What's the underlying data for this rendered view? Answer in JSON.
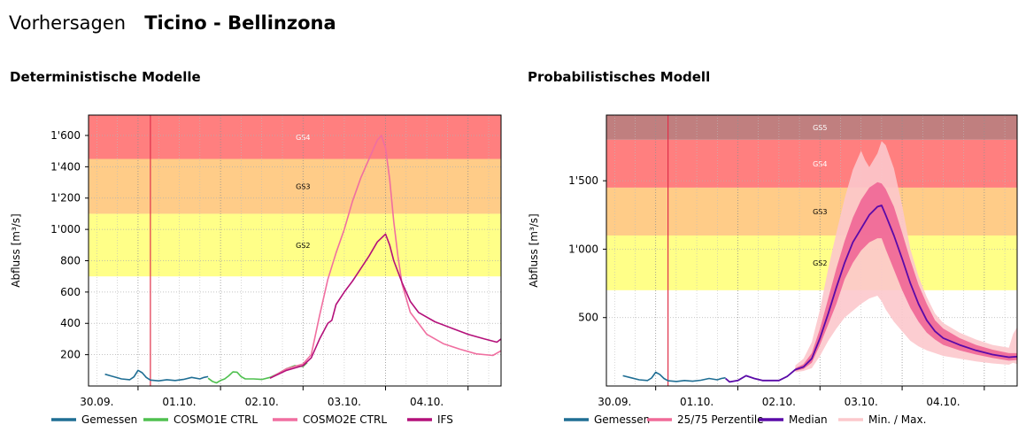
{
  "header": {
    "label": "Vorhersagen",
    "station": "Ticino - Bellinzona"
  },
  "panels": {
    "deterministic_title": "Deterministische Modelle",
    "probabilistic_title": "Probabilistisches Modell"
  },
  "colors": {
    "GS2": "#ffff88",
    "GS3": "#ffcc88",
    "GS4": "#ff7f7f",
    "GS5": "#c07f7f",
    "now_line": "#e0304a",
    "gemessen": "#1f6e94",
    "cosmo1e": "#4fc04f",
    "cosmo2e": "#f06fa0",
    "ifs": "#b4107a",
    "median": "#5a0aa8",
    "perzentile": "#f06a98",
    "minmax": "#fcc8cc"
  },
  "chart_data": [
    {
      "type": "line",
      "title": "Deterministische Modelle",
      "xlabel": "",
      "ylabel": "Abfluss [m³/s]",
      "x_tick_labels": [
        "30.09.",
        "01.10.",
        "02.10.",
        "03.10.",
        "04.10."
      ],
      "x_range_days": [
        -0.6,
        4.4
      ],
      "x_days_note_hidden": true,
      "ylim": [
        0,
        1730
      ],
      "y_ticks": [
        200,
        400,
        600,
        800,
        1000,
        1200,
        1400,
        1600
      ],
      "y_tick_labels": [
        "200",
        "400",
        "600",
        "800",
        "1'000",
        "1'200",
        "1'400",
        "1'600"
      ],
      "grid": true,
      "legend_position": "bottom",
      "now": 0.15,
      "danger_levels": [
        {
          "name": "GS2",
          "from": 700,
          "to": 1100
        },
        {
          "name": "GS3",
          "from": 1100,
          "to": 1450
        },
        {
          "name": "GS4",
          "from": 1450,
          "to": 1730
        }
      ],
      "series": [
        {
          "name": "Gemessen",
          "points": [
            [
              -0.4,
              75
            ],
            [
              -0.3,
              60
            ],
            [
              -0.2,
              45
            ],
            [
              -0.1,
              40
            ],
            [
              -0.05,
              58
            ],
            [
              0.0,
              100
            ],
            [
              0.05,
              85
            ],
            [
              0.1,
              55
            ],
            [
              0.15,
              38
            ],
            [
              0.25,
              33
            ],
            [
              0.35,
              40
            ],
            [
              0.45,
              35
            ],
            [
              0.55,
              42
            ],
            [
              0.65,
              55
            ],
            [
              0.75,
              45
            ],
            [
              0.8,
              55
            ],
            [
              0.85,
              60
            ]
          ]
        },
        {
          "name": "COSMO1E CTRL",
          "points": [
            [
              0.85,
              50
            ],
            [
              0.9,
              30
            ],
            [
              0.95,
              20
            ],
            [
              1.0,
              35
            ],
            [
              1.05,
              45
            ],
            [
              1.1,
              65
            ],
            [
              1.15,
              90
            ],
            [
              1.2,
              88
            ],
            [
              1.25,
              60
            ],
            [
              1.3,
              45
            ],
            [
              1.4,
              45
            ],
            [
              1.5,
              42
            ],
            [
              1.6,
              55
            ],
            [
              1.7,
              80
            ],
            [
              1.8,
              110
            ],
            [
              1.9,
              130
            ],
            [
              2.0,
              125
            ],
            [
              2.05,
              150
            ]
          ]
        },
        {
          "name": "COSMO2E CTRL",
          "points": [
            [
              1.6,
              50
            ],
            [
              1.8,
              110
            ],
            [
              2.0,
              140
            ],
            [
              2.1,
              200
            ],
            [
              2.2,
              450
            ],
            [
              2.3,
              680
            ],
            [
              2.4,
              850
            ],
            [
              2.5,
              1000
            ],
            [
              2.6,
              1180
            ],
            [
              2.7,
              1330
            ],
            [
              2.8,
              1450
            ],
            [
              2.9,
              1570
            ],
            [
              2.95,
              1600
            ],
            [
              3.0,
              1520
            ],
            [
              3.05,
              1320
            ],
            [
              3.1,
              1050
            ],
            [
              3.15,
              830
            ],
            [
              3.2,
              650
            ],
            [
              3.3,
              470
            ],
            [
              3.5,
              330
            ],
            [
              3.7,
              270
            ],
            [
              3.9,
              235
            ],
            [
              4.1,
              205
            ],
            [
              4.3,
              195
            ],
            [
              4.4,
              225
            ]
          ]
        },
        {
          "name": "IFS",
          "points": [
            [
              1.6,
              50
            ],
            [
              1.8,
              100
            ],
            [
              2.0,
              130
            ],
            [
              2.1,
              180
            ],
            [
              2.2,
              300
            ],
            [
              2.3,
              400
            ],
            [
              2.35,
              420
            ],
            [
              2.4,
              520
            ],
            [
              2.5,
              600
            ],
            [
              2.6,
              670
            ],
            [
              2.7,
              750
            ],
            [
              2.8,
              830
            ],
            [
              2.9,
              920
            ],
            [
              3.0,
              970
            ],
            [
              3.05,
              900
            ],
            [
              3.1,
              800
            ],
            [
              3.2,
              660
            ],
            [
              3.3,
              540
            ],
            [
              3.4,
              470
            ],
            [
              3.6,
              410
            ],
            [
              3.8,
              370
            ],
            [
              4.0,
              330
            ],
            [
              4.2,
              300
            ],
            [
              4.35,
              280
            ],
            [
              4.4,
              300
            ]
          ]
        }
      ]
    },
    {
      "type": "area",
      "title": "Probabilistisches Modell",
      "xlabel": "",
      "ylabel": "Abfluss [m³/s]",
      "x_tick_labels": [
        "30.09.",
        "01.10.",
        "02.10.",
        "03.10.",
        "04.10."
      ],
      "x_range_days": [
        -0.6,
        4.4
      ],
      "ylim": [
        0,
        1980
      ],
      "y_ticks": [
        500,
        1000,
        1500
      ],
      "y_tick_labels": [
        "500",
        "1'000",
        "1'500"
      ],
      "grid": true,
      "legend_position": "bottom",
      "now": 0.15,
      "danger_levels": [
        {
          "name": "GS2",
          "from": 700,
          "to": 1100
        },
        {
          "name": "GS3",
          "from": 1100,
          "to": 1450
        },
        {
          "name": "GS4",
          "from": 1450,
          "to": 1800
        },
        {
          "name": "GS5",
          "from": 1800,
          "to": 1980
        }
      ],
      "series": [
        {
          "name": "Gemessen",
          "points": [
            [
              -0.4,
              75
            ],
            [
              -0.3,
              60
            ],
            [
              -0.2,
              45
            ],
            [
              -0.1,
              40
            ],
            [
              -0.05,
              58
            ],
            [
              0.0,
              100
            ],
            [
              0.05,
              85
            ],
            [
              0.1,
              55
            ],
            [
              0.15,
              38
            ],
            [
              0.25,
              33
            ],
            [
              0.35,
              40
            ],
            [
              0.45,
              35
            ],
            [
              0.55,
              42
            ],
            [
              0.65,
              55
            ],
            [
              0.75,
              45
            ],
            [
              0.8,
              55
            ],
            [
              0.85,
              60
            ]
          ]
        },
        {
          "name": "Median",
          "points": [
            [
              0.85,
              55
            ],
            [
              0.9,
              30
            ],
            [
              1.0,
              40
            ],
            [
              1.1,
              75
            ],
            [
              1.2,
              55
            ],
            [
              1.3,
              40
            ],
            [
              1.5,
              40
            ],
            [
              1.6,
              70
            ],
            [
              1.7,
              120
            ],
            [
              1.8,
              140
            ],
            [
              1.9,
              200
            ],
            [
              2.0,
              350
            ],
            [
              2.1,
              530
            ],
            [
              2.2,
              720
            ],
            [
              2.3,
              900
            ],
            [
              2.4,
              1050
            ],
            [
              2.5,
              1150
            ],
            [
              2.6,
              1250
            ],
            [
              2.7,
              1310
            ],
            [
              2.75,
              1320
            ],
            [
              2.8,
              1250
            ],
            [
              2.9,
              1100
            ],
            [
              3.0,
              930
            ],
            [
              3.1,
              750
            ],
            [
              3.2,
              600
            ],
            [
              3.3,
              480
            ],
            [
              3.4,
              400
            ],
            [
              3.5,
              350
            ],
            [
              3.7,
              300
            ],
            [
              3.9,
              260
            ],
            [
              4.1,
              230
            ],
            [
              4.3,
              210
            ],
            [
              4.4,
              215
            ]
          ]
        }
      ],
      "bands": [
        {
          "name": "25/75 Perzentile",
          "points": [
            [
              1.7,
              110,
              130
            ],
            [
              1.8,
              125,
              160
            ],
            [
              1.9,
              170,
              240
            ],
            [
              2.0,
              300,
              420
            ],
            [
              2.1,
              450,
              640
            ],
            [
              2.2,
              600,
              860
            ],
            [
              2.3,
              780,
              1060
            ],
            [
              2.4,
              900,
              1230
            ],
            [
              2.5,
              990,
              1360
            ],
            [
              2.6,
              1050,
              1450
            ],
            [
              2.7,
              1080,
              1490
            ],
            [
              2.75,
              1080,
              1480
            ],
            [
              2.8,
              1000,
              1440
            ],
            [
              2.9,
              850,
              1310
            ],
            [
              3.0,
              700,
              1120
            ],
            [
              3.1,
              570,
              920
            ],
            [
              3.2,
              470,
              740
            ],
            [
              3.3,
              390,
              600
            ],
            [
              3.4,
              340,
              480
            ],
            [
              3.5,
              300,
              420
            ],
            [
              3.7,
              260,
              350
            ],
            [
              3.9,
              230,
              300
            ],
            [
              4.1,
              205,
              265
            ],
            [
              4.3,
              185,
              240
            ],
            [
              4.4,
              190,
              240
            ]
          ]
        },
        {
          "name": "Min. / Max.",
          "points": [
            [
              1.7,
              100,
              150
            ],
            [
              1.8,
              110,
              200
            ],
            [
              1.9,
              130,
              320
            ],
            [
              2.0,
              220,
              560
            ],
            [
              2.1,
              330,
              860
            ],
            [
              2.2,
              420,
              1120
            ],
            [
              2.3,
              500,
              1370
            ],
            [
              2.4,
              550,
              1580
            ],
            [
              2.5,
              600,
              1720
            ],
            [
              2.55,
              620,
              1650
            ],
            [
              2.6,
              640,
              1600
            ],
            [
              2.7,
              660,
              1700
            ],
            [
              2.75,
              620,
              1790
            ],
            [
              2.8,
              560,
              1760
            ],
            [
              2.9,
              470,
              1590
            ],
            [
              3.0,
              400,
              1320
            ],
            [
              3.1,
              330,
              1000
            ],
            [
              3.2,
              290,
              800
            ],
            [
              3.3,
              260,
              650
            ],
            [
              3.4,
              240,
              530
            ],
            [
              3.5,
              220,
              460
            ],
            [
              3.7,
              200,
              390
            ],
            [
              3.9,
              180,
              340
            ],
            [
              4.1,
              165,
              300
            ],
            [
              4.3,
              155,
              280
            ],
            [
              4.35,
              170,
              380
            ],
            [
              4.4,
              160,
              430
            ]
          ]
        }
      ]
    }
  ],
  "legends": {
    "deterministic": [
      {
        "label": "Gemessen",
        "color": "#1f6e94"
      },
      {
        "label": "COSMO1E CTRL",
        "color": "#4fc04f"
      },
      {
        "label": "COSMO2E CTRL",
        "color": "#f06fa0"
      },
      {
        "label": "IFS",
        "color": "#b4107a"
      }
    ],
    "probabilistic": [
      {
        "label": "Gemessen",
        "color": "#1f6e94"
      },
      {
        "label": "25/75 Perzentile",
        "color": "#f06a98"
      },
      {
        "label": "Median",
        "color": "#5a0aa8"
      },
      {
        "label": "Min. / Max.",
        "color": "#fcc8cc"
      }
    ]
  }
}
